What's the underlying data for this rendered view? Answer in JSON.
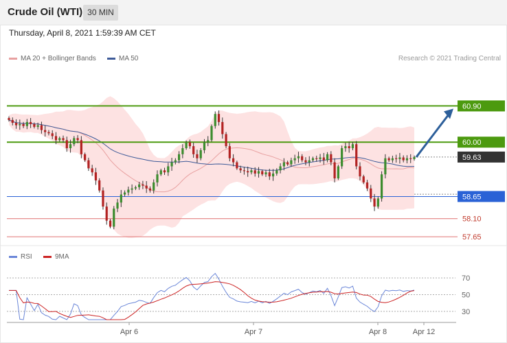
{
  "header": {
    "title": "Crude Oil (WTI)",
    "timeframe": "30 MIN"
  },
  "timestamp": "Thursday, April 8, 2021 1:59:39 AM CET",
  "credit": "Research © 2021 Trading Central",
  "colors": {
    "up": "#3c8c2e",
    "down": "#b22222",
    "bollinger": "#fde2e2",
    "ma20": "#e8a0a0",
    "ma50": "#3d5a98",
    "resistance": "#4c9a0f",
    "support_blue": "#2a62d6",
    "support_red": "#e07070",
    "arrow": "#2d5f9a",
    "current": "#333333",
    "rsi": "#6a86d8",
    "rsi_ma": "#cc2222"
  },
  "chart_data": [
    {
      "type": "candlestick",
      "title": "Crude Oil (WTI)",
      "interval": "30 MIN",
      "legend": [
        "MA 20 + Bollinger Bands",
        "MA 50"
      ],
      "legend_position": "top-left",
      "grid": false,
      "ylim": [
        57.55,
        61.35
      ],
      "x_ticks": [
        "Apr 6",
        "Apr 7",
        "Apr 8",
        "Apr 12"
      ],
      "levels": [
        {
          "value": 60.9,
          "label": "60.90",
          "kind": "resistance"
        },
        {
          "value": 60.0,
          "label": "60.00",
          "kind": "resistance"
        },
        {
          "value": 59.63,
          "label": "59.63",
          "kind": "current"
        },
        {
          "value": 58.65,
          "label": "58.65",
          "kind": "support"
        },
        {
          "value": 58.1,
          "label": "58.10",
          "kind": "support_minor"
        },
        {
          "value": 57.65,
          "label": "57.65",
          "kind": "support_minor"
        }
      ],
      "projection": {
        "from": 59.63,
        "to": 60.9
      },
      "close": [
        60.55,
        60.48,
        60.42,
        60.45,
        60.4,
        60.5,
        60.45,
        60.38,
        60.42,
        60.3,
        60.25,
        60.22,
        60.15,
        60.05,
        60.1,
        60.05,
        59.85,
        59.95,
        60.1,
        60.05,
        59.7,
        59.55,
        59.35,
        59.25,
        59.05,
        58.8,
        58.4,
        58.05,
        57.9,
        58.35,
        58.5,
        58.7,
        58.75,
        58.82,
        58.85,
        58.88,
        58.95,
        58.92,
        58.85,
        58.8,
        59.0,
        59.2,
        59.3,
        59.25,
        59.4,
        59.5,
        59.55,
        59.7,
        59.85,
        60.0,
        59.9,
        59.7,
        59.6,
        59.8,
        60.0,
        60.05,
        60.4,
        60.7,
        60.5,
        60.2,
        59.9,
        59.6,
        59.5,
        59.35,
        59.3,
        59.28,
        59.25,
        59.3,
        59.22,
        59.28,
        59.2,
        59.25,
        59.15,
        59.22,
        59.3,
        59.4,
        59.5,
        59.45,
        59.55,
        59.6,
        59.65,
        59.55,
        59.5,
        59.55,
        59.6,
        59.58,
        59.62,
        59.55,
        59.7,
        59.5,
        59.1,
        59.4,
        59.85,
        59.9,
        59.85,
        59.95,
        59.4,
        59.15,
        59.0,
        58.85,
        58.6,
        58.4,
        58.6,
        59.2,
        59.6,
        59.55,
        59.6,
        59.58,
        59.62,
        59.55,
        59.6,
        59.58,
        59.63
      ],
      "rsi": {
        "legend": [
          "RSI",
          "9MA"
        ],
        "ylim": [
          20,
          80
        ],
        "ticks": [
          70,
          50,
          30
        ]
      }
    }
  ]
}
